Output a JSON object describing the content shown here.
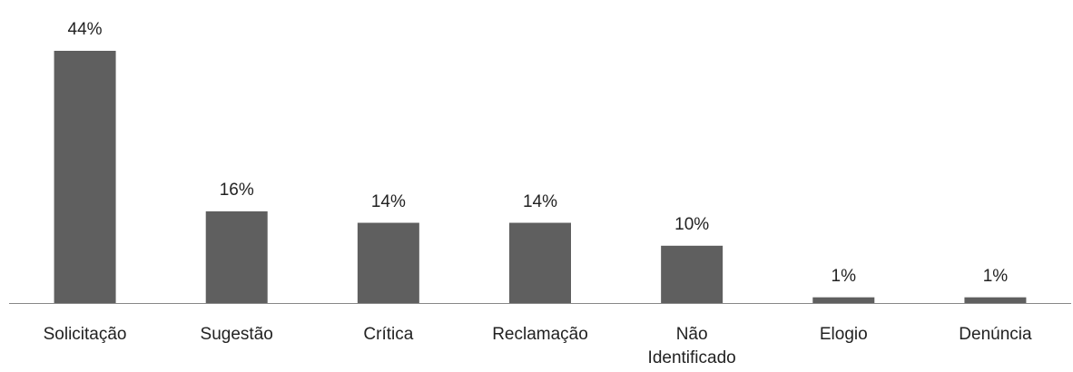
{
  "chart_data": {
    "type": "bar",
    "categories": [
      "Solicitação",
      "Sugestão",
      "Crítica",
      "Reclamação",
      "Não Identificado",
      "Elogio",
      "Denúncia"
    ],
    "values": [
      44,
      16,
      14,
      14,
      10,
      1,
      1
    ],
    "value_labels": [
      "44%",
      "16%",
      "14%",
      "14%",
      "10%",
      "1%",
      "1%"
    ],
    "color": "#5f5f5f"
  }
}
